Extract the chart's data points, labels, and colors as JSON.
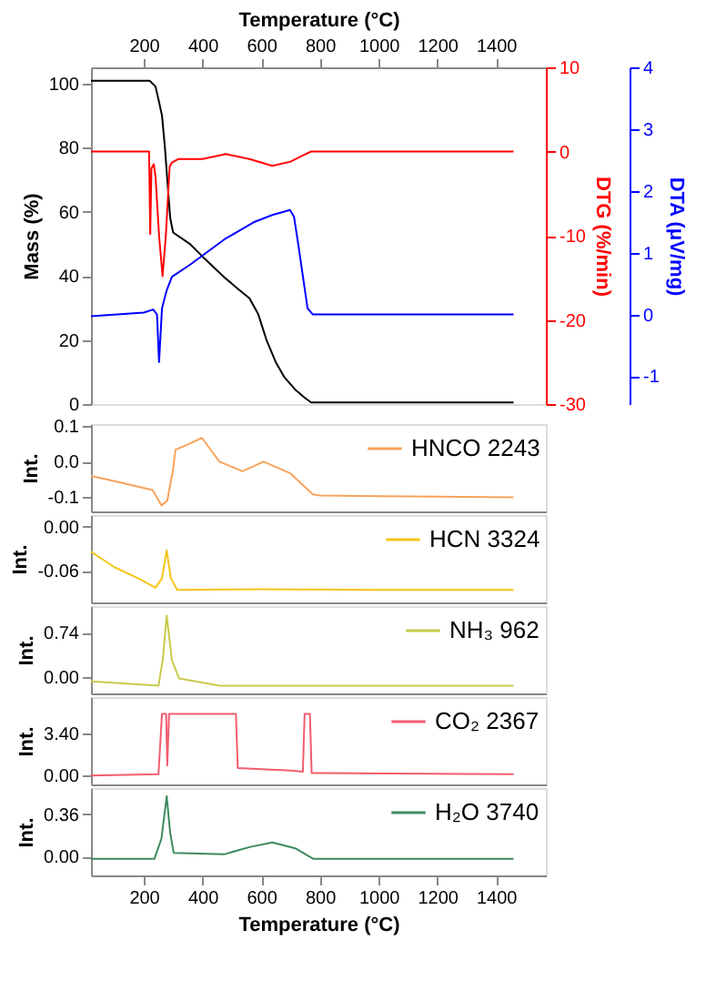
{
  "chart_data": [
    {
      "type": "line",
      "xlabel": "Temperature (°C)",
      "xlim": [
        20,
        1570
      ],
      "xticks": [
        200,
        400,
        600,
        800,
        1000,
        1200,
        1400
      ],
      "ylabel": "Mass (%)",
      "y2label": "DTG (%/min)",
      "y3label": "DTA (μV/mg)",
      "ylim": [
        0,
        105
      ],
      "yticks": [
        0,
        20,
        40,
        60,
        80,
        100
      ],
      "y2lim": [
        -30,
        10
      ],
      "y2ticks": [
        -30,
        -20,
        -10,
        0,
        10
      ],
      "y3lim": [
        -1.45,
        4
      ],
      "y3ticks": [
        -1,
        0,
        1,
        2,
        3,
        4
      ],
      "series": [
        {
          "color": "#000000",
          "axis": "y",
          "x": [
            20,
            220,
            240,
            250,
            262,
            272,
            280,
            290,
            300,
            356,
            400,
            476,
            520,
            560,
            590,
            618,
            650,
            678,
            718,
            748,
            770,
            1460
          ],
          "values": [
            100.8,
            100.8,
            99,
            95,
            90,
            80,
            70,
            58,
            53.5,
            50,
            46,
            39.4,
            36,
            33,
            28,
            20,
            13,
            8.5,
            4.3,
            2,
            0.5,
            0.5
          ]
        },
        {
          "color": "#ff0000",
          "axis": "y2",
          "x": [
            20,
            218,
            222,
            226,
            234,
            240,
            252,
            264,
            275,
            288,
            296,
            317,
            400,
            480,
            560,
            638,
            700,
            740,
            770,
            1460
          ],
          "values": [
            0,
            0,
            -9.8,
            -2,
            -1.5,
            -3,
            -10,
            -14.8,
            -10,
            -1.8,
            -1.3,
            -0.9,
            -0.9,
            -0.3,
            -0.9,
            -1.7,
            -1.2,
            -0.5,
            0,
            0
          ]
        },
        {
          "color": "#0000ff",
          "axis": "y3",
          "x": [
            20,
            200,
            232,
            245,
            252,
            262,
            278,
            296,
            356,
            476,
            578,
            638,
            698,
            712,
            728,
            758,
            776,
            1460
          ],
          "values": [
            -0.03,
            0.03,
            0.08,
            0,
            -0.77,
            0.1,
            0.39,
            0.61,
            0.8,
            1.22,
            1.5,
            1.61,
            1.69,
            1.58,
            1.08,
            0.1,
            0,
            0
          ]
        }
      ]
    },
    {
      "type": "line",
      "xlim": [
        20,
        1570
      ],
      "xticks": [
        200,
        400,
        600,
        800,
        1000,
        1200,
        1400
      ],
      "tick_labels": "y",
      "ylabel": "Int.",
      "ylim": [
        -0.14,
        0.106
      ],
      "yticks": [
        -0.1,
        {
          "value": 0,
          "label": "0.0"
        },
        0.1
      ],
      "legend": "top right",
      "series": [
        {
          "name": "HNCO 2243",
          "color": "#f7a35c",
          "x": [
            20,
            100,
            230,
            260,
            280,
            300,
            308,
            340,
            398,
            458,
            536,
            608,
            698,
            776,
            800,
            1000,
            1460
          ],
          "values": [
            -0.04,
            -0.055,
            -0.08,
            -0.123,
            -0.11,
            -0.02,
            0.034,
            0.045,
            0.067,
            0.0,
            -0.027,
            0.0,
            -0.032,
            -0.092,
            -0.095,
            -0.097,
            -0.1
          ]
        }
      ]
    },
    {
      "type": "line",
      "xlim": [
        20,
        1570
      ],
      "xticks": [
        200,
        400,
        600,
        800,
        1000,
        1200,
        1400
      ],
      "tick_labels": "y",
      "ylabel": "Int.",
      "ylim": [
        -0.103,
        0.016
      ],
      "yticks": [
        -0.06,
        {
          "value": 0,
          "label": "0.00"
        }
      ],
      "legend": "top right",
      "series": [
        {
          "name": "HCN 3324",
          "color": "#f5c518",
          "x": [
            20,
            100,
            180,
            240,
            262,
            278,
            292,
            314,
            600,
            1000,
            1460
          ],
          "values": [
            -0.034,
            -0.055,
            -0.07,
            -0.083,
            -0.07,
            -0.032,
            -0.07,
            -0.086,
            -0.085,
            -0.086,
            -0.086
          ]
        }
      ]
    },
    {
      "type": "line",
      "xlim": [
        20,
        1570
      ],
      "xticks": [
        200,
        400,
        600,
        800,
        1000,
        1200,
        1400
      ],
      "tick_labels": "y",
      "ylabel": "Int.",
      "ylim": [
        -0.27,
        1.18
      ],
      "yticks": [
        {
          "value": 0,
          "label": "0.00"
        },
        0.74
      ],
      "legend": "top right",
      "series": [
        {
          "name": "NH₃ 962",
          "color": "#c9c94a",
          "x": [
            20,
            250,
            265,
            278,
            288,
            296,
            320,
            458,
            1000,
            1460
          ],
          "values": [
            -0.07,
            -0.14,
            0.3,
            1.02,
            0.6,
            0.28,
            -0.02,
            -0.14,
            -0.14,
            -0.14
          ]
        }
      ]
    },
    {
      "type": "line",
      "xlim": [
        20,
        1570
      ],
      "xticks": [
        200,
        400,
        600,
        800,
        1000,
        1200,
        1400
      ],
      "tick_labels": "y",
      "ylabel": "Int.",
      "ylim": [
        -0.73,
        6.37
      ],
      "yticks": [
        {
          "value": 0,
          "label": "0.00"
        },
        {
          "value": 3.4,
          "label": "3.40"
        }
      ],
      "legend": "top right",
      "series": [
        {
          "name": "CO₂ 2367",
          "color": "#f25c6e",
          "x": [
            20,
            250,
            262,
            276,
            280,
            286,
            514,
            520,
            600,
            700,
            742,
            748,
            766,
            772,
            800,
            1460
          ],
          "values": [
            0.0,
            0.1,
            5.0,
            5.0,
            0.8,
            5.0,
            5.0,
            0.6,
            0.5,
            0.4,
            0.3,
            5.0,
            5.0,
            0.2,
            0.2,
            0.1
          ]
        }
      ]
    },
    {
      "type": "line",
      "xlim": [
        20,
        1570
      ],
      "xticks": [
        200,
        400,
        600,
        800,
        1000,
        1200,
        1400
      ],
      "xlabel": "Temperature (°C)",
      "ylabel": "Int.",
      "ylim": [
        -0.16,
        0.58
      ],
      "yticks": [
        {
          "value": 0,
          "label": "0.00"
        },
        {
          "value": 0.36,
          "label": "0.36"
        }
      ],
      "legend": "top right",
      "series": [
        {
          "name": "H₂O 3740",
          "color": "#3d8b5e",
          "x": [
            20,
            236,
            260,
            278,
            290,
            302,
            476,
            560,
            638,
            716,
            778,
            1000,
            1460
          ],
          "values": [
            -0.02,
            -0.02,
            0.15,
            0.51,
            0.2,
            0.03,
            0.02,
            0.08,
            0.12,
            0.07,
            -0.02,
            -0.02,
            -0.02
          ]
        }
      ]
    }
  ]
}
